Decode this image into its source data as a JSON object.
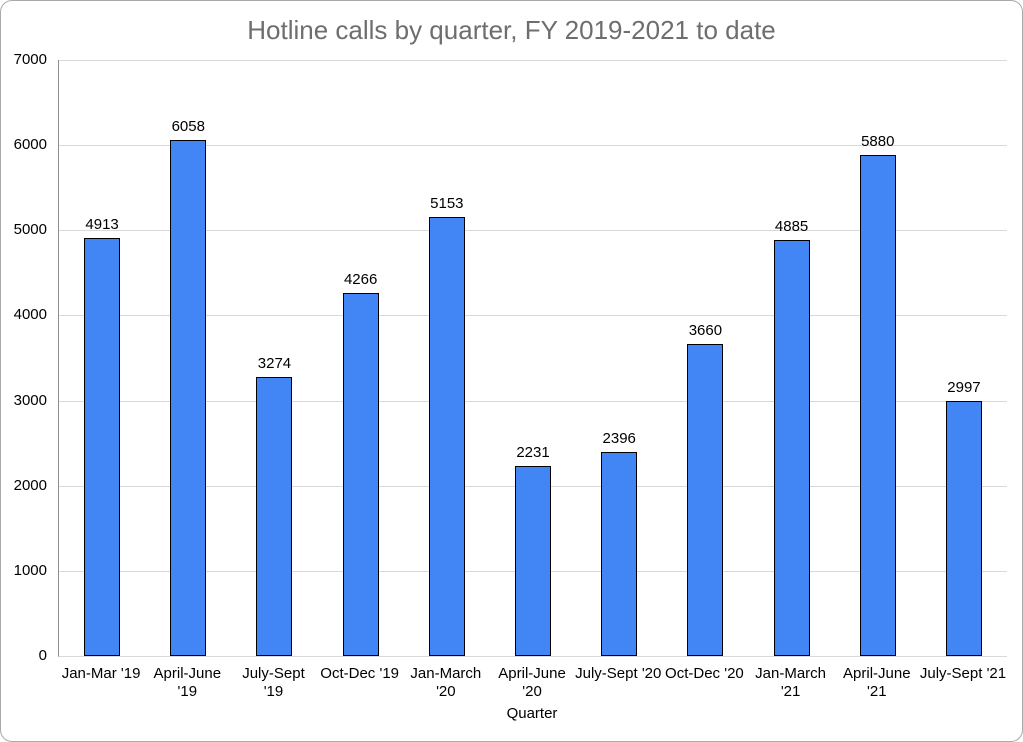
{
  "title": "Hotline calls by quarter, FY 2019-2021 to date",
  "chart_data": {
    "type": "bar",
    "title": "Hotline calls by quarter, FY 2019-2021 to date",
    "xlabel": "Quarter",
    "ylabel": "",
    "ylim": [
      0,
      7000
    ],
    "ytick_interval": 1000,
    "yticks": [
      0,
      1000,
      2000,
      3000,
      4000,
      5000,
      6000,
      7000
    ],
    "grid": true,
    "legend": "none",
    "data_labels": true,
    "categories": [
      "Jan-Mar '19",
      "April-June '19",
      "July-Sept '19",
      "Oct-Dec '19",
      "Jan-March '20",
      "April-June '20",
      "July-Sept '20",
      "Oct-Dec '20",
      "Jan-March '21",
      "April-June '21",
      "July-Sept '21"
    ],
    "category_lines": [
      [
        "Jan-Mar '19"
      ],
      [
        "April-June",
        "'19"
      ],
      [
        "July-Sept",
        "'19"
      ],
      [
        "Oct-Dec '19"
      ],
      [
        "Jan-March",
        "'20"
      ],
      [
        "April-June",
        "'20"
      ],
      [
        "July-Sept '20"
      ],
      [
        "Oct-Dec '20"
      ],
      [
        "Jan-March",
        "'21"
      ],
      [
        "April-June",
        "'21"
      ],
      [
        "July-Sept '21"
      ]
    ],
    "values": [
      4913,
      6058,
      3274,
      4266,
      5153,
      2231,
      2396,
      3660,
      4885,
      5880,
      2997
    ]
  },
  "colors": {
    "background": "#ffffff",
    "window_border": "#aaaaaa",
    "title": "#6e6e6e",
    "text": "#000000",
    "grid": "#d9d9d9",
    "axis_line": "#8f8f8f",
    "bar": "#4285f4",
    "bar_border": "#000000"
  }
}
